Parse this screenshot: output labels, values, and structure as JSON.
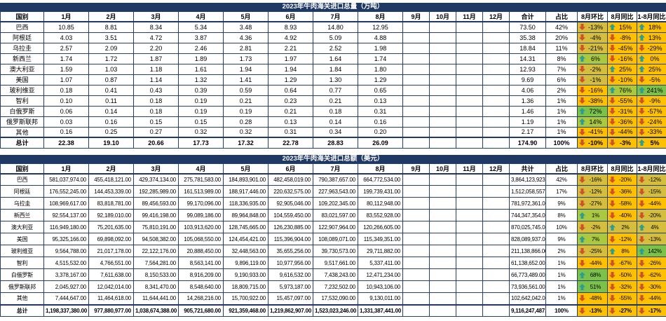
{
  "colors": {
    "title_bg": "#1F3864",
    "up_arrow": "#2C9D92",
    "down_arrow": "#D0502C",
    "g": "#FFC000",
    "o": "#D5BE3D",
    "yg": "#ABC93F",
    "gr": "#7CC24A"
  },
  "tables": [
    {
      "title": "2023年牛肉海关进口总量（万吨）",
      "columns": {
        "country": "国别",
        "months": [
          "1月",
          "2月",
          "3月",
          "4月",
          "5月",
          "6月",
          "7月",
          "8月",
          "9月",
          "10月",
          "11月",
          "12月"
        ],
        "total": "合计",
        "share": "占比",
        "mom": "8月环比",
        "yoy": "8月同比",
        "ytd": "1-8月同比"
      },
      "rows": [
        {
          "country": "巴西",
          "values": [
            "10.85",
            "8.81",
            "8.34",
            "5.34",
            "3.48",
            "8.93",
            "14.80",
            "12.95"
          ],
          "total": "73.50",
          "share": "42%",
          "mom": {
            "d": "down",
            "t": "-13%",
            "bg": "o"
          },
          "yoy": {
            "d": "up",
            "t": "15%",
            "bg": "g"
          },
          "ytd": {
            "d": "up",
            "t": "18%",
            "bg": "g"
          }
        },
        {
          "country": "阿根廷",
          "values": [
            "4.03",
            "3.51",
            "4.72",
            "3.87",
            "4.36",
            "4.92",
            "5.09",
            "4.88"
          ],
          "total": "35.38",
          "share": "20%",
          "mom": {
            "d": "down",
            "t": "-4%",
            "bg": "o"
          },
          "yoy": {
            "d": "down",
            "t": "-8%",
            "bg": "g"
          },
          "ytd": {
            "d": "up",
            "t": "13%",
            "bg": "g"
          }
        },
        {
          "country": "乌拉圭",
          "values": [
            "2.57",
            "2.09",
            "2.20",
            "2.46",
            "2.81",
            "2.21",
            "2.52",
            "1.98"
          ],
          "total": "18.84",
          "share": "11%",
          "mom": {
            "d": "down",
            "t": "-21%",
            "bg": "o"
          },
          "yoy": {
            "d": "down",
            "t": "-45%",
            "bg": "g"
          },
          "ytd": {
            "d": "down",
            "t": "-29%",
            "bg": "g"
          }
        },
        {
          "country": "新西兰",
          "values": [
            "1.74",
            "1.72",
            "1.87",
            "1.89",
            "1.73",
            "1.97",
            "1.64",
            "1.74"
          ],
          "total": "14.31",
          "share": "8%",
          "mom": {
            "d": "up",
            "t": "6%",
            "bg": "yg"
          },
          "yoy": {
            "d": "down",
            "t": "-16%",
            "bg": "g"
          },
          "ytd": {
            "d": "up",
            "t": "0%",
            "bg": "g"
          }
        },
        {
          "country": "澳大利亚",
          "values": [
            "1.59",
            "1.03",
            "1.18",
            "1.61",
            "1.94",
            "1.94",
            "1.84",
            "1.80"
          ],
          "total": "12.93",
          "share": "7%",
          "mom": {
            "d": "down",
            "t": "-2%",
            "bg": "o"
          },
          "yoy": {
            "d": "up",
            "t": "25%",
            "bg": "g"
          },
          "ytd": {
            "d": "up",
            "t": "25%",
            "bg": "g"
          }
        },
        {
          "country": "美国",
          "values": [
            "1.07",
            "0.87",
            "1.14",
            "1.32",
            "1.41",
            "1.29",
            "1.30",
            "1.29"
          ],
          "total": "9.69",
          "share": "6%",
          "mom": {
            "d": "down",
            "t": "-1%",
            "bg": "o"
          },
          "yoy": {
            "d": "down",
            "t": "-10%",
            "bg": "g"
          },
          "ytd": {
            "d": "down",
            "t": "-5%",
            "bg": "g"
          }
        },
        {
          "country": "玻利维亚",
          "values": [
            "0.18",
            "0.41",
            "0.43",
            "0.39",
            "0.59",
            "0.64",
            "0.77",
            "0.65"
          ],
          "total": "4.06",
          "share": "2%",
          "mom": {
            "d": "down",
            "t": "-16%",
            "bg": "g"
          },
          "yoy": {
            "d": "up",
            "t": "76%",
            "bg": "yg"
          },
          "ytd": {
            "d": "up",
            "t": "241%",
            "bg": "gr"
          }
        },
        {
          "country": "智利",
          "values": [
            "0.10",
            "0.11",
            "0.18",
            "0.19",
            "0.21",
            "0.23",
            "0.21",
            "0.13"
          ],
          "total": "1.36",
          "share": "1%",
          "mom": {
            "d": "down",
            "t": "-38%",
            "bg": "g"
          },
          "yoy": {
            "d": "down",
            "t": "-55%",
            "bg": "g"
          },
          "ytd": {
            "d": "down",
            "t": "-9%",
            "bg": "g"
          }
        },
        {
          "country": "白俄罗斯",
          "values": [
            "0.06",
            "0.14",
            "0.18",
            "0.19",
            "0.19",
            "0.21",
            "0.18",
            "0.31"
          ],
          "total": "1.46",
          "share": "1%",
          "mom": {
            "d": "up",
            "t": "72%",
            "bg": "gr"
          },
          "yoy": {
            "d": "down",
            "t": "-31%",
            "bg": "g"
          },
          "ytd": {
            "d": "down",
            "t": "-57%",
            "bg": "g"
          }
        },
        {
          "country": "俄罗斯联邦",
          "values": [
            "0.03",
            "0.16",
            "0.15",
            "0.15",
            "0.28",
            "0.13",
            "0.14",
            "0.16"
          ],
          "total": "1.19",
          "share": "1%",
          "mom": {
            "d": "up",
            "t": "14%",
            "bg": "yg"
          },
          "yoy": {
            "d": "down",
            "t": "-36%",
            "bg": "g"
          },
          "ytd": {
            "d": "down",
            "t": "-24%",
            "bg": "g"
          }
        },
        {
          "country": "其他",
          "values": [
            "0.16",
            "0.25",
            "0.27",
            "0.32",
            "0.32",
            "0.31",
            "0.34",
            "0.20"
          ],
          "total": "2.17",
          "share": "1%",
          "mom": {
            "d": "down",
            "t": "-41%",
            "bg": "g"
          },
          "yoy": {
            "d": "down",
            "t": "-44%",
            "bg": "g"
          },
          "ytd": {
            "d": "down",
            "t": "-33%",
            "bg": "g"
          }
        },
        {
          "country": "总计",
          "is_total": true,
          "values": [
            "22.38",
            "19.10",
            "20.66",
            "17.73",
            "17.32",
            "22.78",
            "28.83",
            "26.09"
          ],
          "total": "174.90",
          "share": "100%",
          "mom": {
            "d": "down",
            "t": "-10%",
            "bg": "g"
          },
          "yoy": {
            "d": "down",
            "t": "-3%",
            "bg": "g"
          },
          "ytd": {
            "d": "up",
            "t": "5%",
            "bg": "g"
          }
        }
      ]
    },
    {
      "title": "2023年牛肉海关进口总额（美元）",
      "columns": {
        "country": "国别",
        "months": [
          "1月",
          "2月",
          "3月",
          "4月",
          "5月",
          "6月",
          "7月",
          "8月",
          "9月",
          "10月",
          "11月",
          "12月"
        ],
        "total": "共计",
        "share": "占比",
        "mom": "8月环比",
        "yoy": "8月同比",
        "ytd": "1-8月同比"
      },
      "rows": [
        {
          "country": "巴西",
          "values": [
            "581,037,974.00",
            "455,418,121.00",
            "429,374,134.00",
            "275,781,583.00",
            "184,893,901.00",
            "482,458,019.00",
            "790,387,657.00",
            "664,772,534.00"
          ],
          "total": "3,864,123,923.00",
          "share": "42%",
          "mom": {
            "d": "down",
            "t": "-16%",
            "bg": "o"
          },
          "yoy": {
            "d": "down",
            "t": "-20%",
            "bg": "g"
          },
          "ytd": {
            "d": "down",
            "t": "-12%",
            "bg": "o"
          }
        },
        {
          "country": "阿根廷",
          "values": [
            "176,552,245.00",
            "144,453,339.00",
            "192,285,989.00",
            "161,513,989.00",
            "188,917,446.00",
            "220,632,575.00",
            "227,963,543.00",
            "199,739,431.00"
          ],
          "total": "1,512,058,557.00",
          "share": "17%",
          "mom": {
            "d": "down",
            "t": "-12%",
            "bg": "o"
          },
          "yoy": {
            "d": "down",
            "t": "-36%",
            "bg": "g"
          },
          "ytd": {
            "d": "down",
            "t": "-15%",
            "bg": "o"
          }
        },
        {
          "country": "乌拉圭",
          "values": [
            "108,969,617.00",
            "83,818,781.00",
            "89,456,593.00",
            "99,170,096.00",
            "118,336,935.00",
            "92,905,046.00",
            "109,202,345.00",
            "80,112,948.00"
          ],
          "total": "781,972,361.00",
          "share": "9%",
          "mom": {
            "d": "down",
            "t": "-27%",
            "bg": "o"
          },
          "yoy": {
            "d": "down",
            "t": "-58%",
            "bg": "g"
          },
          "ytd": {
            "d": "down",
            "t": "-44%",
            "bg": "g"
          }
        },
        {
          "country": "新西兰",
          "values": [
            "92,554,137.00",
            "92,189,010.00",
            "99,416,198.00",
            "99,089,186.00",
            "89,964,848.00",
            "104,559,450.00",
            "83,021,597.00",
            "83,552,928.00"
          ],
          "total": "744,347,354.00",
          "share": "8%",
          "mom": {
            "d": "up",
            "t": "1%",
            "bg": "yg"
          },
          "yoy": {
            "d": "down",
            "t": "-40%",
            "bg": "g"
          },
          "ytd": {
            "d": "down",
            "t": "-20%",
            "bg": "o"
          }
        },
        {
          "country": "澳大利亚",
          "values": [
            "116,949,180.00",
            "75,201,635.00",
            "75,810,191.00",
            "103,913,620.00",
            "128,745,665.00",
            "126,230,885.00",
            "122,907,964.00",
            "120,266,605.00"
          ],
          "total": "870,025,745.00",
          "share": "10%",
          "mom": {
            "d": "down",
            "t": "-2%",
            "bg": "o"
          },
          "yoy": {
            "d": "up",
            "t": "2%",
            "bg": "o"
          },
          "ytd": {
            "d": "up",
            "t": "4%",
            "bg": "o"
          }
        },
        {
          "country": "美国",
          "values": [
            "95,325,166.00",
            "69,898,092.00",
            "94,508,382.00",
            "105,068,550.00",
            "124,454,421.00",
            "115,396,904.00",
            "108,089,071.00",
            "115,349,351.00"
          ],
          "total": "828,089,937.00",
          "share": "9%",
          "mom": {
            "d": "up",
            "t": "7%",
            "bg": "yg"
          },
          "yoy": {
            "d": "down",
            "t": "-12%",
            "bg": "g"
          },
          "ytd": {
            "d": "down",
            "t": "-13%",
            "bg": "o"
          }
        },
        {
          "country": "玻利维亚",
          "values": [
            "9,564,788.00",
            "21,017,178.00",
            "22,122,176.00",
            "20,888,450.00",
            "32,448,563.00",
            "35,655,256.00",
            "39,730,573.00",
            "29,711,882.00"
          ],
          "total": "211,138,866.00",
          "share": "2%",
          "mom": {
            "d": "down",
            "t": "-25%",
            "bg": "o"
          },
          "yoy": {
            "d": "up",
            "t": "8%",
            "bg": "g"
          },
          "ytd": {
            "d": "up",
            "t": "142%",
            "bg": "gr"
          }
        },
        {
          "country": "智利",
          "values": [
            "4,515,532.00",
            "4,766,551.00",
            "7,564,281.00",
            "8,563,141.00",
            "9,896,119.00",
            "10,977,956.00",
            "9,517,661.00",
            "5,337,411.00"
          ],
          "total": "61,138,652.00",
          "share": "1%",
          "mom": {
            "d": "down",
            "t": "-44%",
            "bg": "g"
          },
          "yoy": {
            "d": "down",
            "t": "-67%",
            "bg": "g"
          },
          "ytd": {
            "d": "down",
            "t": "-26%",
            "bg": "g"
          }
        },
        {
          "country": "白俄罗斯",
          "values": [
            "3,378,167.00",
            "7,611,638.00",
            "8,150,533.00",
            "8,916,209.00",
            "9,190,933.00",
            "9,616,532.00",
            "7,438,243.00",
            "12,471,234.00"
          ],
          "total": "66,773,489.00",
          "share": "1%",
          "mom": {
            "d": "up",
            "t": "68%",
            "bg": "gr"
          },
          "yoy": {
            "d": "down",
            "t": "-50%",
            "bg": "g"
          },
          "ytd": {
            "d": "down",
            "t": "-62%",
            "bg": "g"
          }
        },
        {
          "country": "俄罗斯联邦",
          "values": [
            "2,045,927.00",
            "12,042,014.00",
            "8,341,470.00",
            "8,548,640.00",
            "18,809,715.00",
            "5,973,187.00",
            "7,232,502.00",
            "10,943,106.00"
          ],
          "total": "73,936,561.00",
          "share": "1%",
          "mom": {
            "d": "up",
            "t": "51%",
            "bg": "gr"
          },
          "yoy": {
            "d": "down",
            "t": "-32%",
            "bg": "g"
          },
          "ytd": {
            "d": "down",
            "t": "-30%",
            "bg": "g"
          }
        },
        {
          "country": "其他",
          "values": [
            "7,444,647.00",
            "11,464,618.00",
            "11,644,441.00",
            "14,268,216.00",
            "15,700,922.00",
            "15,457,097.00",
            "17,532,090.00",
            "9,130,011.00"
          ],
          "total": "102,642,042.00",
          "share": "1%",
          "mom": {
            "d": "down",
            "t": "-48%",
            "bg": "g"
          },
          "yoy": {
            "d": "down",
            "t": "-55%",
            "bg": "g"
          },
          "ytd": {
            "d": "down",
            "t": "-44%",
            "bg": "g"
          }
        },
        {
          "country": "总计",
          "is_total": true,
          "values": [
            "1,198,337,380.00",
            "977,880,977.00",
            "1,038,674,388.00",
            "905,721,680.00",
            "921,359,468.00",
            "1,219,862,907.00",
            "1,523,023,246.00",
            "1,331,387,441.00"
          ],
          "total": "9,116,247,487.00",
          "share": "100%",
          "mom": {
            "d": "down",
            "t": "-13%",
            "bg": "g"
          },
          "yoy": {
            "d": "down",
            "t": "-27%",
            "bg": "g"
          },
          "ytd": {
            "d": "down",
            "t": "-17%",
            "bg": "g"
          }
        }
      ]
    }
  ]
}
